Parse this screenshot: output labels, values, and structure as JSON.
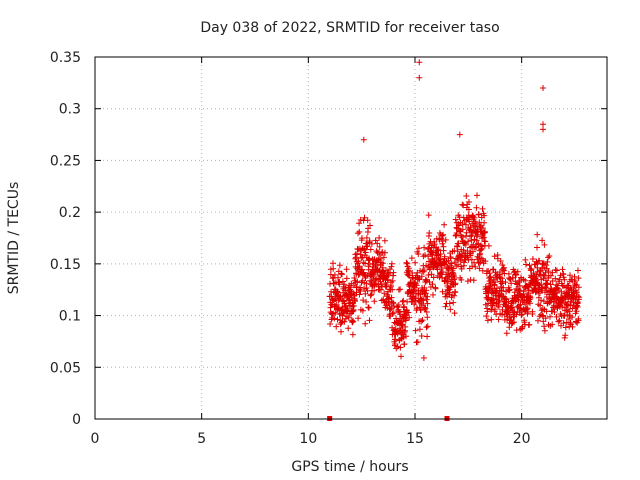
{
  "chart_data": {
    "type": "scatter",
    "title": "Day 038 of 2022, SRMTID for receiver taso",
    "xlabel": "GPS time / hours",
    "ylabel": "SRMTID / TECUs",
    "xlim": [
      0,
      24
    ],
    "ylim": [
      0,
      0.35
    ],
    "xticks": [
      "0",
      "5",
      "10",
      "15",
      "20"
    ],
    "yticks": [
      "0",
      "0.05",
      "0.1",
      "0.15",
      "0.2",
      "0.25",
      "0.3",
      "0.35"
    ],
    "grid": true,
    "marker": "plus",
    "colors": {
      "points": "#e00000"
    },
    "data_span_hours": [
      11.0,
      22.7
    ],
    "notable_points": [
      {
        "x": 15.2,
        "y": 0.345
      },
      {
        "x": 15.2,
        "y": 0.33
      },
      {
        "x": 21.0,
        "y": 0.32
      },
      {
        "x": 21.0,
        "y": 0.285
      },
      {
        "x": 21.0,
        "y": 0.28
      },
      {
        "x": 17.1,
        "y": 0.275
      },
      {
        "x": 12.6,
        "y": 0.27
      }
    ],
    "zero_markers_hours": [
      11.0,
      16.5
    ]
  }
}
